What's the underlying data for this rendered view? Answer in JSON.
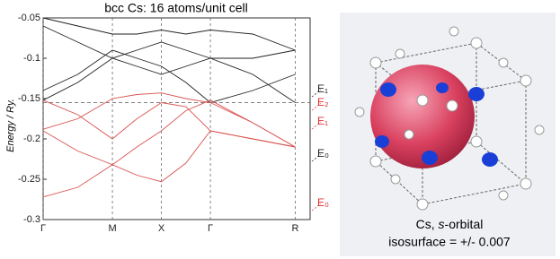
{
  "chart_data": {
    "type": "line",
    "title": "bcc Cs: 16 atoms/unit cell",
    "y_label": "Energy / Ry.",
    "xlim": [
      0,
      5.45
    ],
    "ylim": [
      -0.3,
      -0.05
    ],
    "yticks": [
      -0.05,
      -0.1,
      -0.15,
      -0.2,
      -0.25,
      -0.3
    ],
    "xticks": [
      {
        "value": 0,
        "label": "Γ"
      },
      {
        "value": 1.414,
        "label": "M"
      },
      {
        "value": 2.414,
        "label": "X"
      },
      {
        "value": 3.414,
        "label": "Γ"
      },
      {
        "value": 5.146,
        "label": "R"
      }
    ],
    "x": [
      0,
      0.707,
      1.414,
      1.914,
      2.414,
      2.914,
      3.414,
      4.28,
      5.146
    ],
    "reference_line": -0.155,
    "series": [
      {
        "color": "#222222",
        "values": [
          -0.152,
          -0.13,
          -0.1,
          -0.11,
          -0.12,
          -0.11,
          -0.1,
          -0.1,
          -0.09
        ]
      },
      {
        "color": "#222222",
        "values": [
          -0.06,
          -0.08,
          -0.1,
          -0.09,
          -0.08,
          -0.09,
          -0.1,
          -0.12,
          -0.155
        ]
      },
      {
        "color": "#222222",
        "values": [
          -0.05,
          -0.06,
          -0.07,
          -0.07,
          -0.065,
          -0.07,
          -0.065,
          -0.07,
          -0.09
        ]
      },
      {
        "color": "#222222",
        "values": [
          -0.14,
          -0.12,
          -0.09,
          -0.1,
          -0.11,
          -0.13,
          -0.155,
          -0.14,
          -0.12
        ]
      },
      {
        "color": "#d9534f",
        "values": [
          -0.272,
          -0.26,
          -0.232,
          -0.245,
          -0.253,
          -0.23,
          -0.19,
          -0.2,
          -0.21
        ]
      },
      {
        "color": "#d9534f",
        "values": [
          -0.19,
          -0.215,
          -0.232,
          -0.21,
          -0.19,
          -0.165,
          -0.152,
          -0.18,
          -0.21
        ]
      },
      {
        "color": "#d9534f",
        "values": [
          -0.152,
          -0.17,
          -0.2,
          -0.175,
          -0.155,
          -0.16,
          -0.19,
          -0.2,
          -0.21
        ]
      },
      {
        "color": "#d9534f",
        "values": [
          -0.188,
          -0.175,
          -0.15,
          -0.145,
          -0.143,
          -0.15,
          -0.155,
          -0.18,
          -0.21
        ]
      }
    ],
    "annotations": [
      {
        "text": "E₁",
        "color": "#222222"
      },
      {
        "text": "E₂",
        "color": "#e03030"
      },
      {
        "text": "E₁",
        "color": "#e03030"
      },
      {
        "text": "E₀",
        "color": "#222222"
      },
      {
        "text": "E₀",
        "color": "#e03030"
      }
    ]
  },
  "figure": {
    "caption_parts": [
      "Cs, ",
      "s",
      "-orbital"
    ],
    "caption_line2": "isosurface = +/- 0.007"
  }
}
